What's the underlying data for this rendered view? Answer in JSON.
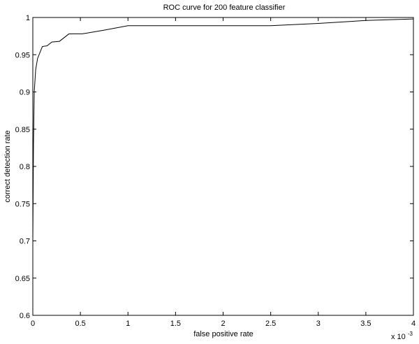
{
  "chart_data": {
    "type": "line",
    "title": "ROC curve for 200 feature classifier",
    "xlabel": "false positive rate",
    "ylabel": "correct detection rate",
    "xlim": [
      0,
      4
    ],
    "ylim": [
      0.6,
      1.0
    ],
    "x_multiplier": "x 10",
    "x_multiplier_exponent": "-3",
    "x_ticks": [
      0,
      0.5,
      1,
      1.5,
      2,
      2.5,
      3,
      3.5,
      4
    ],
    "x_tick_labels": [
      "0",
      "0.5",
      "1",
      "1.5",
      "2",
      "2.5",
      "3",
      "3.5",
      "4"
    ],
    "y_ticks": [
      0.6,
      0.65,
      0.7,
      0.75,
      0.8,
      0.85,
      0.9,
      0.95,
      1.0
    ],
    "y_tick_labels": [
      "0.6",
      "0.65",
      "0.7",
      "0.75",
      "0.8",
      "0.85",
      "0.9",
      "0.95",
      "1"
    ],
    "grid": false,
    "series": [
      {
        "color": "#000000",
        "x": [
          0.0,
          0.007,
          0.015,
          0.03,
          0.05,
          0.1,
          0.15,
          0.2,
          0.28,
          0.38,
          0.52,
          0.75,
          1.0,
          2.5,
          3.0,
          3.5,
          4.0
        ],
        "y": [
          0.7,
          0.83,
          0.9,
          0.93,
          0.945,
          0.961,
          0.962,
          0.967,
          0.968,
          0.978,
          0.978,
          0.983,
          0.989,
          0.989,
          0.992,
          0.996,
          0.998
        ]
      }
    ]
  }
}
